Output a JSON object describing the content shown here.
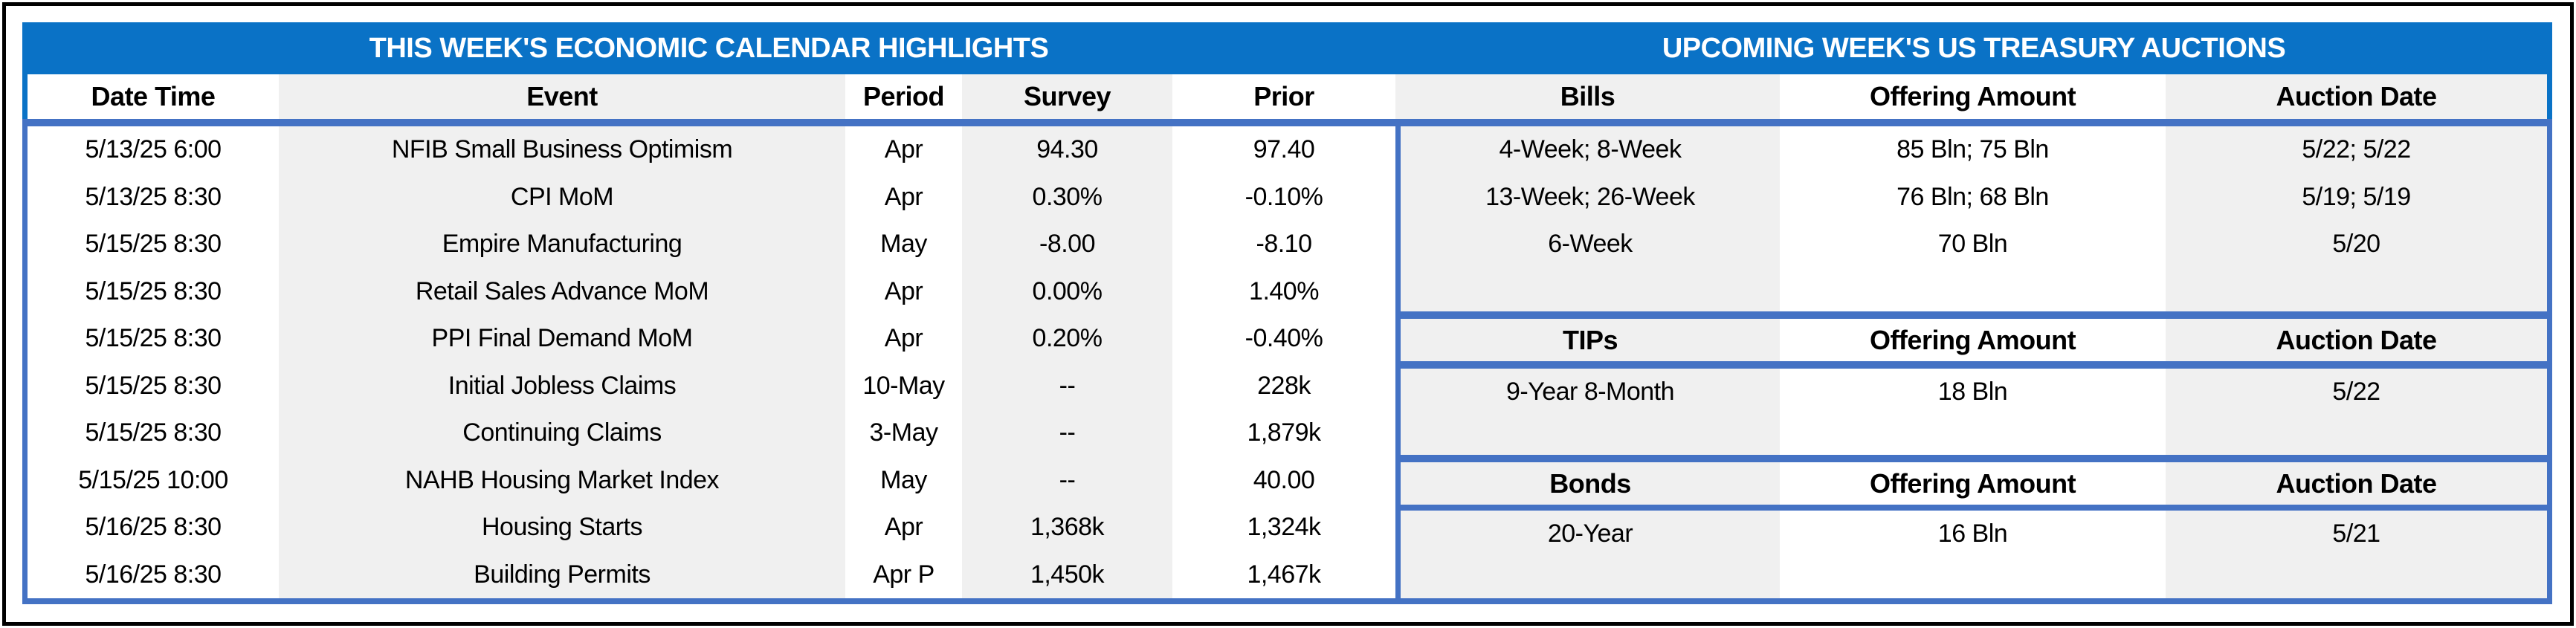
{
  "left_panel": {
    "title": "THIS WEEK'S ECONOMIC CALENDAR HIGHLIGHTS",
    "columns": [
      "Date Time",
      "Event",
      "Period",
      "Survey",
      "Prior"
    ],
    "rows": [
      [
        "5/13/25 6:00",
        "NFIB Small Business Optimism",
        "Apr",
        "94.30",
        "97.40"
      ],
      [
        "5/13/25 8:30",
        "CPI MoM",
        "Apr",
        "0.30%",
        "-0.10%"
      ],
      [
        "5/15/25 8:30",
        "Empire Manufacturing",
        "May",
        "-8.00",
        "-8.10"
      ],
      [
        "5/15/25 8:30",
        "Retail Sales Advance MoM",
        "Apr",
        "0.00%",
        "1.40%"
      ],
      [
        "5/15/25 8:30",
        "PPI Final Demand MoM",
        "Apr",
        "0.20%",
        "-0.40%"
      ],
      [
        "5/15/25 8:30",
        "Initial Jobless Claims",
        "10-May",
        "--",
        "228k"
      ],
      [
        "5/15/25 8:30",
        "Continuing Claims",
        "3-May",
        "--",
        "1,879k"
      ],
      [
        "5/15/25 10:00",
        "NAHB Housing Market Index",
        "May",
        "--",
        "40.00"
      ],
      [
        "5/16/25 8:30",
        "Housing Starts",
        "Apr",
        "1,368k",
        "1,324k"
      ],
      [
        "5/16/25 8:30",
        "Building Permits",
        "Apr P",
        "1,450k",
        "1,467k"
      ]
    ]
  },
  "right_panel": {
    "title": "UPCOMING WEEK'S US TREASURY AUCTIONS",
    "sections": [
      {
        "name": "Bills",
        "columns": [
          "Bills",
          "Offering Amount",
          "Auction Date"
        ],
        "rows": [
          [
            "4-Week; 8-Week",
            "85 Bln; 75 Bln",
            "5/22; 5/22"
          ],
          [
            "13-Week; 26-Week",
            "76 Bln; 68 Bln",
            "5/19; 5/19"
          ],
          [
            "6-Week",
            "70 Bln",
            "5/20"
          ]
        ]
      },
      {
        "name": "TIPs",
        "columns": [
          "TIPs",
          "Offering Amount",
          "Auction Date"
        ],
        "rows": [
          [
            "9-Year 8-Month",
            "18 Bln",
            "5/22"
          ]
        ]
      },
      {
        "name": "Bonds",
        "columns": [
          "Bonds",
          "Offering Amount",
          "Auction Date"
        ],
        "rows": [
          [
            "20-Year",
            "16 Bln",
            "5/21"
          ]
        ]
      }
    ]
  },
  "colors": {
    "band_blue": "#0A72C6",
    "border_blue": "#4472C4",
    "column_gray": "#F0F0F0",
    "frame_black": "#000000"
  }
}
